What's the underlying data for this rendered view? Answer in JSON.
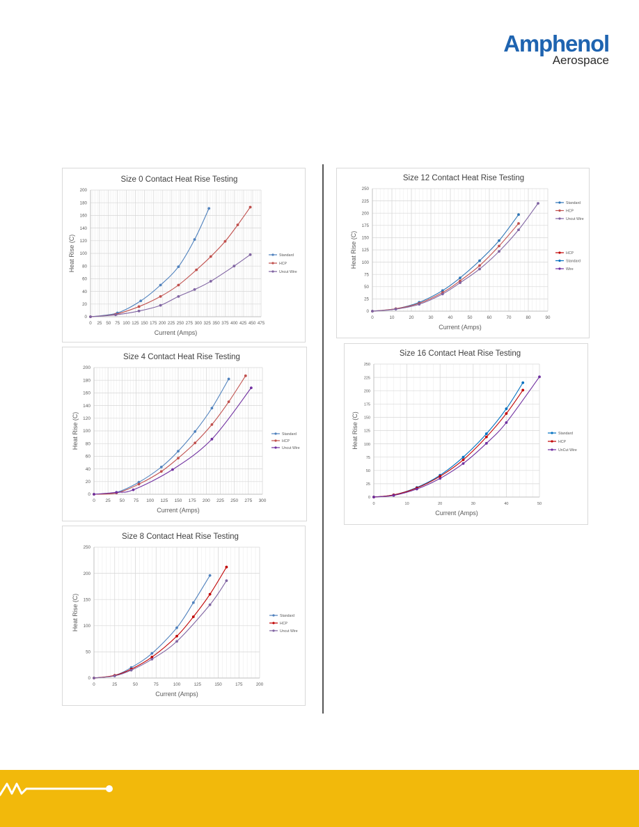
{
  "header": {
    "brand_name": "Amphenol",
    "brand_sub": "Aerospace",
    "brand_color": "#1f64b0"
  },
  "footer": {
    "band_color": "#f2b90b",
    "motif": "zigzag-line-with-dot"
  },
  "chart_data": [
    {
      "type": "line",
      "title": "Size 0 Contact Heat Rise Testing",
      "xlabel": "Current (Amps)",
      "ylabel": "Heat Rise (C)",
      "xlim": [
        0,
        475
      ],
      "ylim": [
        0,
        200
      ],
      "xticks": [
        0,
        25,
        50,
        75,
        100,
        125,
        150,
        175,
        200,
        225,
        250,
        275,
        300,
        325,
        350,
        375,
        400,
        425,
        450,
        475
      ],
      "yticks": [
        0,
        20,
        40,
        60,
        80,
        100,
        120,
        140,
        160,
        180,
        200
      ],
      "grid": true,
      "legend_position": "right",
      "series": [
        {
          "name": "Standard",
          "color": "#4f81bd",
          "x": [
            0,
            75,
            140,
            195,
            245,
            290,
            330
          ],
          "y": [
            0,
            6,
            25,
            50,
            79,
            122,
            171
          ]
        },
        {
          "name": "HCP",
          "color": "#c0504d",
          "x": [
            0,
            70,
            135,
            195,
            245,
            295,
            335,
            375,
            410,
            445
          ],
          "y": [
            0,
            4,
            16,
            32,
            50,
            74,
            95,
            119,
            145,
            173
          ]
        },
        {
          "name": "Uncut Wire",
          "color": "#8064a2",
          "x": [
            0,
            70,
            135,
            195,
            245,
            290,
            335,
            400,
            445
          ],
          "y": [
            0,
            3,
            9,
            18,
            32,
            43,
            56,
            80,
            98
          ]
        }
      ]
    },
    {
      "type": "line",
      "title": "Size 4 Contact Heat Rise Testing",
      "xlabel": "Current (Amps)",
      "ylabel": "Heat Rise (C)",
      "xlim": [
        0,
        300
      ],
      "ylim": [
        0,
        200
      ],
      "xticks": [
        0,
        25,
        50,
        75,
        100,
        125,
        150,
        175,
        200,
        225,
        250,
        275,
        300
      ],
      "yticks": [
        0,
        20,
        40,
        60,
        80,
        100,
        120,
        140,
        160,
        180,
        200
      ],
      "grid": true,
      "legend_position": "right",
      "series": [
        {
          "name": "Standard",
          "color": "#4f81bd",
          "x": [
            0,
            40,
            80,
            120,
            150,
            180,
            210,
            240
          ],
          "y": [
            0,
            3,
            19,
            43,
            68,
            99,
            136,
            182
          ]
        },
        {
          "name": "HCP",
          "color": "#c0504d",
          "x": [
            0,
            40,
            80,
            120,
            150,
            180,
            210,
            240,
            270
          ],
          "y": [
            0,
            2,
            16,
            36,
            57,
            81,
            110,
            146,
            187
          ]
        },
        {
          "name": "Uncut Wire",
          "color": "#7030a0",
          "x": [
            0,
            40,
            70,
            140,
            210,
            280
          ],
          "y": [
            0,
            3,
            7,
            39,
            87,
            168
          ]
        }
      ]
    },
    {
      "type": "line",
      "title": "Size 8 Contact Heat Rise Testing",
      "xlabel": "Current (Amps)",
      "ylabel": "Heat Rise (C)",
      "xlim": [
        0,
        200
      ],
      "ylim": [
        0,
        250
      ],
      "xticks": [
        0,
        25,
        50,
        75,
        100,
        125,
        150,
        175,
        200
      ],
      "yticks": [
        0,
        50,
        100,
        150,
        200,
        250
      ],
      "grid": true,
      "legend_position": "right",
      "series": [
        {
          "name": "Standard",
          "color": "#4f81bd",
          "x": [
            0,
            25,
            45,
            70,
            100,
            120,
            140
          ],
          "y": [
            0,
            5,
            20,
            47,
            96,
            144,
            196
          ]
        },
        {
          "name": "HCP",
          "color": "#c00000",
          "x": [
            0,
            25,
            45,
            70,
            100,
            120,
            140,
            160
          ],
          "y": [
            0,
            5,
            17,
            40,
            80,
            117,
            160,
            212
          ]
        },
        {
          "name": "Uncut Wire",
          "color": "#8064a2",
          "x": [
            0,
            25,
            45,
            70,
            100,
            140,
            160
          ],
          "y": [
            0,
            4,
            15,
            36,
            70,
            140,
            186
          ]
        }
      ]
    },
    {
      "type": "line",
      "title": "Size 12 Contact Heat Rise Testing",
      "xlabel": "Current (Amps)",
      "ylabel": "Heat Rise (C)",
      "xlim": [
        0,
        90
      ],
      "ylim": [
        0,
        250
      ],
      "xticks": [
        0,
        10,
        20,
        30,
        40,
        50,
        60,
        70,
        80,
        90
      ],
      "yticks": [
        0,
        25,
        50,
        75,
        100,
        125,
        150,
        175,
        200,
        225,
        250
      ],
      "grid": true,
      "legend_position": "right",
      "series": [
        {
          "name": "Standard",
          "color": "#2e75b6",
          "x": [
            0,
            12,
            24,
            36,
            45,
            55,
            65,
            75
          ],
          "y": [
            0,
            5,
            18,
            42,
            68,
            103,
            144,
            197
          ]
        },
        {
          "name": "HCP",
          "color": "#c0504d",
          "x": [
            0,
            12,
            24,
            36,
            45,
            55,
            65,
            75
          ],
          "y": [
            0,
            5,
            16,
            38,
            62,
            93,
            133,
            179
          ]
        },
        {
          "name": "Uncut Wire",
          "color": "#8064a2",
          "x": [
            0,
            12,
            24,
            36,
            45,
            55,
            65,
            75,
            85
          ],
          "y": [
            0,
            4,
            14,
            35,
            58,
            86,
            122,
            166,
            220
          ]
        },
        {
          "name": "HCP",
          "color": "#c00000",
          "x": [],
          "y": []
        },
        {
          "name": "Standard",
          "color": "#0070c0",
          "x": [],
          "y": []
        },
        {
          "name": "Wire",
          "color": "#7030a0",
          "x": [],
          "y": []
        }
      ]
    },
    {
      "type": "line",
      "title": "Size 16 Contact Heat Rise Testing",
      "xlabel": "Current (Amps)",
      "ylabel": "Heat Rise (C)",
      "xlim": [
        0,
        50
      ],
      "ylim": [
        0,
        250
      ],
      "xticks": [
        0,
        10,
        20,
        30,
        40,
        50
      ],
      "yticks": [
        0,
        25,
        50,
        75,
        100,
        125,
        150,
        175,
        200,
        225,
        250
      ],
      "grid": true,
      "legend_position": "right",
      "series": [
        {
          "name": "Standard",
          "color": "#0070c0",
          "x": [
            0,
            6,
            13,
            20,
            27,
            34,
            40,
            45
          ],
          "y": [
            0,
            4,
            18,
            41,
            75,
            119,
            166,
            215
          ]
        },
        {
          "name": "HCP",
          "color": "#c00000",
          "x": [
            0,
            6,
            13,
            20,
            27,
            34,
            40,
            45
          ],
          "y": [
            0,
            4,
            17,
            39,
            70,
            113,
            157,
            201
          ]
        },
        {
          "name": "UnCut Wire",
          "color": "#7030a0",
          "x": [
            0,
            6,
            13,
            20,
            27,
            34,
            40,
            50
          ],
          "y": [
            0,
            3,
            15,
            35,
            63,
            101,
            140,
            226
          ]
        }
      ]
    }
  ]
}
